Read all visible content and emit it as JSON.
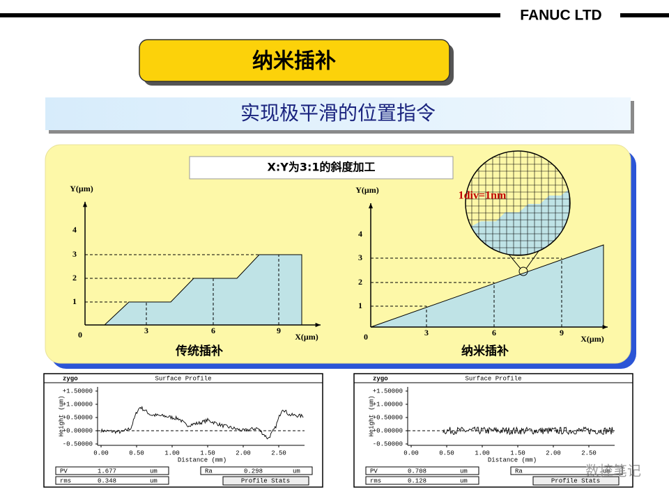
{
  "header": {
    "brand": "FANUC LTD"
  },
  "title": "纳米插补",
  "subtitle": "实现极平滑的位置指令",
  "diagram": {
    "caption": "X:Y为3:1的斜度加工",
    "left": {
      "y_label": "Y(μm)",
      "x_label": "X(μm)",
      "origin": "0",
      "yticks": [
        "1",
        "2",
        "3",
        "4"
      ],
      "xticks": [
        "3",
        "6",
        "9"
      ],
      "name": "传统插补"
    },
    "right": {
      "y_label": "Y(μm)",
      "x_label": "X(μm)",
      "origin": "0",
      "yticks": [
        "1",
        "2",
        "3",
        "4"
      ],
      "xticks": [
        "3",
        "6",
        "9"
      ],
      "name": "纳米插补",
      "zoom_label": "1div=1nm"
    }
  },
  "profiles": [
    {
      "app": "zygo",
      "title": "Surface Profile",
      "y_axis": "Height (um)",
      "x_axis": "Distance (mm)",
      "yticks": [
        "+1.50000",
        "+1.00000",
        "+0.50000",
        "+0.00000",
        "-0.50000"
      ],
      "xticks": [
        "0.00",
        "0.50",
        "1.00",
        "1.50",
        "2.00",
        "2.50"
      ],
      "stats": {
        "pv_label": "PV",
        "pv": "1.677",
        "ra_label": "Ra",
        "ra": "0.298",
        "rms_label": "rms",
        "rms": "0.348",
        "unit": "um",
        "button": "Profile Stats"
      }
    },
    {
      "app": "zygo",
      "title": "Surface Profile",
      "y_axis": "Height (um)",
      "x_axis": "Distance (mm)",
      "yticks": [
        "+1.50000",
        "+1.00000",
        "+0.50000",
        "+0.00000",
        "-0.50000"
      ],
      "xticks": [
        "0.00",
        "0.50",
        "1.00",
        "1.50",
        "2.00",
        "2.50"
      ],
      "stats": {
        "pv_label": "PV",
        "pv": "0.708",
        "ra_label": "Ra",
        "rms_label": "rms",
        "rms": "0.128",
        "unit": "um",
        "button": "Profile Stats"
      }
    }
  ],
  "watermark": "数控笔记"
}
